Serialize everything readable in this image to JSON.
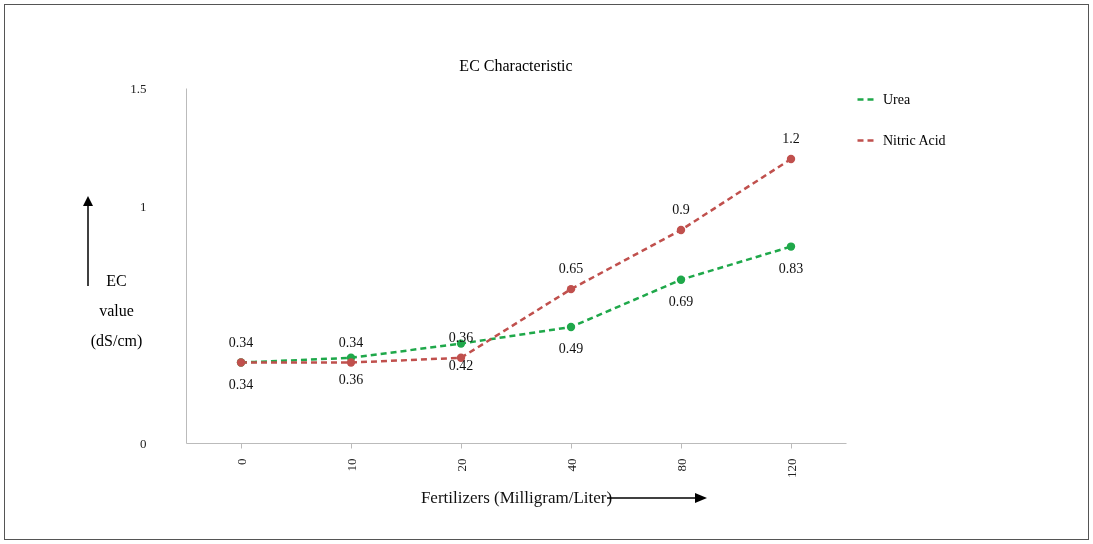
{
  "chart_data": {
    "type": "line",
    "title": "EC Characteristic",
    "xlabel": "Fertilizers (Milligram/Liter)",
    "ylabel": "EC value (dS/cm)",
    "categories": [
      "0",
      "10",
      "20",
      "40",
      "80",
      "120"
    ],
    "series": [
      {
        "name": "Urea",
        "color": "#1fa84a",
        "values": [
          0.34,
          0.36,
          0.42,
          0.49,
          0.69,
          0.83
        ]
      },
      {
        "name": "Nitric Acid",
        "color": "#c0504d",
        "values": [
          0.34,
          0.34,
          0.36,
          0.65,
          0.9,
          1.2
        ]
      }
    ],
    "ylim": [
      0,
      1.5
    ],
    "yticks": [
      0,
      1,
      1.5
    ],
    "grid": false,
    "legend": "right",
    "marker": "circle",
    "line_style": "dashed",
    "data_labels": true
  }
}
